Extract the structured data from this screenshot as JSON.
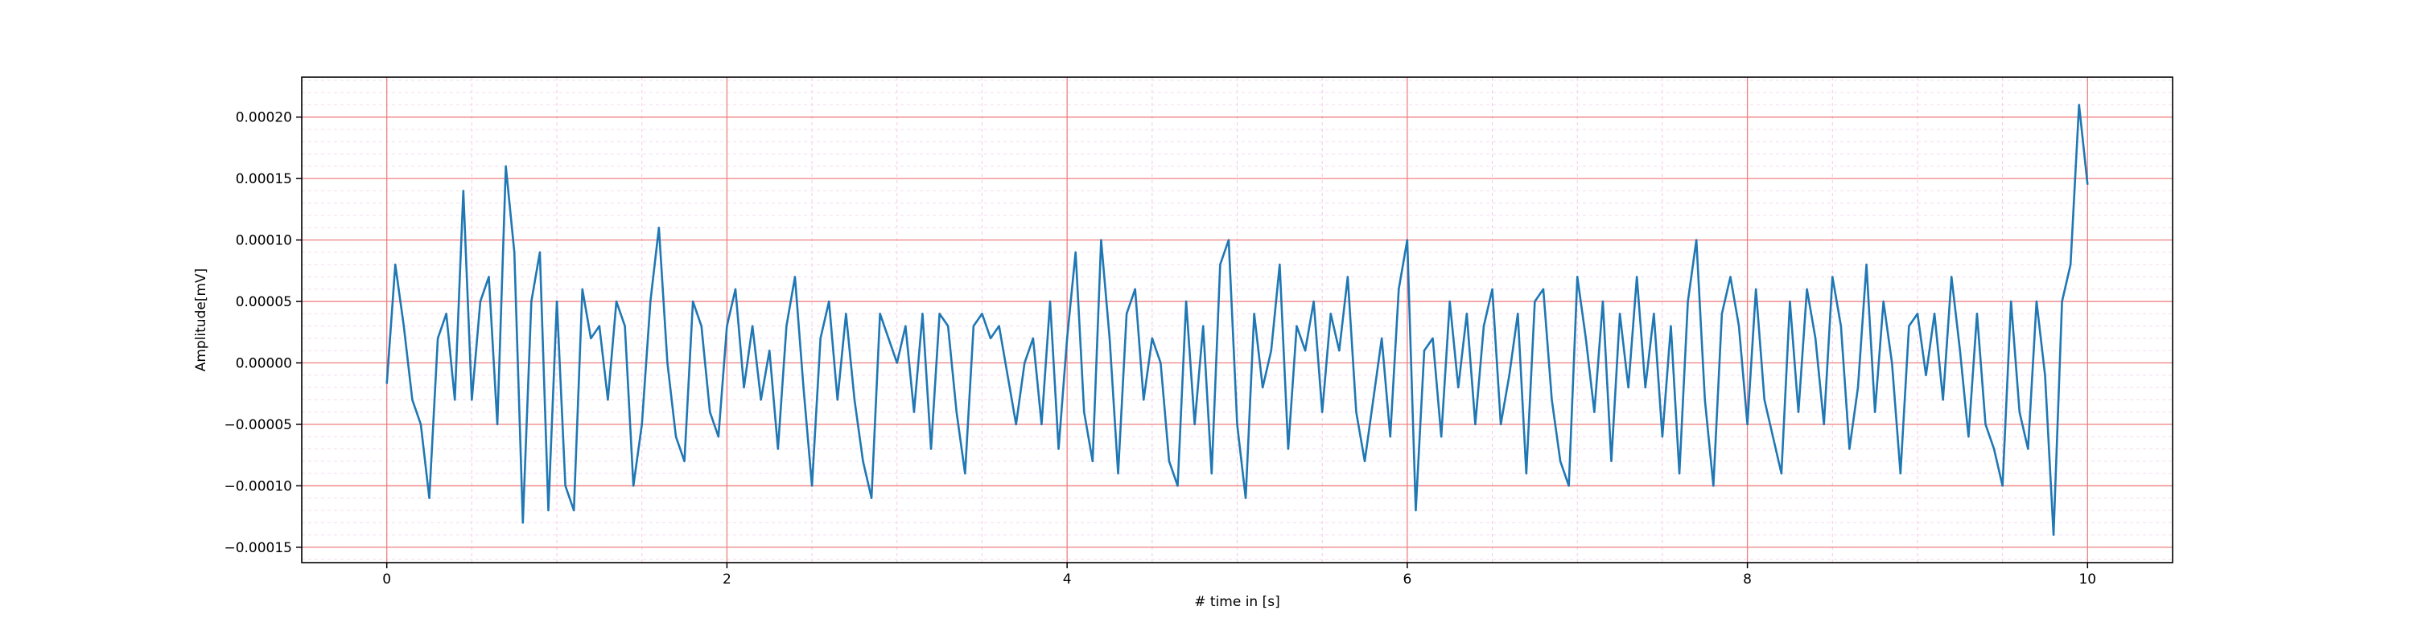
{
  "chart_data": {
    "type": "line",
    "xlabel": "# time in [s]",
    "ylabel": "Amplitude[mV]",
    "x": [
      0,
      0.05,
      0.1,
      0.15,
      0.2,
      0.25,
      0.3,
      0.35,
      0.4,
      0.45,
      0.5,
      0.55,
      0.6,
      0.65,
      0.7,
      0.75,
      0.8,
      0.85,
      0.9,
      0.95,
      1.0,
      1.05,
      1.1,
      1.15,
      1.2,
      1.25,
      1.3,
      1.35,
      1.4,
      1.45,
      1.5,
      1.55,
      1.6,
      1.65,
      1.7,
      1.75,
      1.8,
      1.85,
      1.9,
      1.95,
      2.0,
      2.05,
      2.1,
      2.15,
      2.2,
      2.25,
      2.3,
      2.35,
      2.4,
      2.45,
      2.5,
      2.55,
      2.6,
      2.65,
      2.7,
      2.75,
      2.8,
      2.85,
      2.9,
      2.95,
      3.0,
      3.05,
      3.1,
      3.15,
      3.2,
      3.25,
      3.3,
      3.35,
      3.4,
      3.45,
      3.5,
      3.55,
      3.6,
      3.65,
      3.7,
      3.75,
      3.8,
      3.85,
      3.9,
      3.95,
      4.0,
      4.05,
      4.1,
      4.15,
      4.2,
      4.25,
      4.3,
      4.35,
      4.4,
      4.45,
      4.5,
      4.55,
      4.6,
      4.65,
      4.7,
      4.75,
      4.8,
      4.85,
      4.9,
      4.95,
      5.0,
      5.05,
      5.1,
      5.15,
      5.2,
      5.25,
      5.3,
      5.35,
      5.4,
      5.45,
      5.5,
      5.55,
      5.6,
      5.65,
      5.7,
      5.75,
      5.8,
      5.85,
      5.9,
      5.95,
      6.0,
      6.05,
      6.1,
      6.15,
      6.2,
      6.25,
      6.3,
      6.35,
      6.4,
      6.45,
      6.5,
      6.55,
      6.6,
      6.65,
      6.7,
      6.75,
      6.8,
      6.85,
      6.9,
      6.95,
      7.0,
      7.05,
      7.1,
      7.15,
      7.2,
      7.25,
      7.3,
      7.35,
      7.4,
      7.45,
      7.5,
      7.55,
      7.6,
      7.65,
      7.7,
      7.75,
      7.8,
      7.85,
      7.9,
      7.95,
      8.0,
      8.05,
      8.1,
      8.15,
      8.2,
      8.25,
      8.3,
      8.35,
      8.4,
      8.45,
      8.5,
      8.55,
      8.6,
      8.65,
      8.7,
      8.75,
      8.8,
      8.85,
      8.9,
      8.95,
      9.0,
      9.05,
      9.1,
      9.15,
      9.2,
      9.25,
      9.3,
      9.35,
      9.4,
      9.45,
      9.5,
      9.55,
      9.6,
      9.65,
      9.7,
      9.75,
      9.8,
      9.85,
      9.9,
      9.95,
      10.0
    ],
    "series": [
      {
        "color": "#1f77b4",
        "values": [
          -1.7e-05,
          8e-05,
          3e-05,
          -3e-05,
          -5e-05,
          -0.00011,
          2e-05,
          4e-05,
          -3e-05,
          0.00014,
          -3e-05,
          5e-05,
          7e-05,
          -5e-05,
          0.00016,
          9e-05,
          -0.00013,
          5e-05,
          9e-05,
          -0.00012,
          5e-05,
          -0.0001,
          -0.00012,
          6e-05,
          2e-05,
          3e-05,
          -3e-05,
          5e-05,
          3e-05,
          -0.0001,
          -5e-05,
          5e-05,
          0.00011,
          0,
          -6e-05,
          -8e-05,
          5e-05,
          3e-05,
          -4e-05,
          -6e-05,
          3e-05,
          6e-05,
          -2e-05,
          3e-05,
          -3e-05,
          1e-05,
          -7e-05,
          3e-05,
          7e-05,
          -2e-05,
          -0.0001,
          2e-05,
          5e-05,
          -3e-05,
          4e-05,
          -3e-05,
          -8e-05,
          -0.00011,
          4e-05,
          2e-05,
          0,
          3e-05,
          -4e-05,
          4e-05,
          -7e-05,
          4e-05,
          3e-05,
          -4e-05,
          -9e-05,
          3e-05,
          4e-05,
          2e-05,
          3e-05,
          -1e-05,
          -5e-05,
          0,
          2e-05,
          -5e-05,
          5e-05,
          -7e-05,
          2e-05,
          9e-05,
          -4e-05,
          -8e-05,
          0.0001,
          2e-05,
          -9e-05,
          4e-05,
          6e-05,
          -3e-05,
          2e-05,
          0,
          -8e-05,
          -0.0001,
          5e-05,
          -5e-05,
          3e-05,
          -9e-05,
          8e-05,
          0.0001,
          -5e-05,
          -0.00011,
          4e-05,
          -2e-05,
          1e-05,
          8e-05,
          -7e-05,
          3e-05,
          1e-05,
          5e-05,
          -4e-05,
          4e-05,
          1e-05,
          7e-05,
          -4e-05,
          -8e-05,
          -3e-05,
          2e-05,
          -6e-05,
          6e-05,
          0.0001,
          -0.00012,
          1e-05,
          2e-05,
          -6e-05,
          5e-05,
          -2e-05,
          4e-05,
          -5e-05,
          3e-05,
          6e-05,
          -5e-05,
          -1e-05,
          4e-05,
          -9e-05,
          5e-05,
          6e-05,
          -3e-05,
          -8e-05,
          -0.0001,
          7e-05,
          2e-05,
          -4e-05,
          5e-05,
          -8e-05,
          4e-05,
          -2e-05,
          7e-05,
          -2e-05,
          4e-05,
          -6e-05,
          3e-05,
          -9e-05,
          5e-05,
          0.0001,
          -3e-05,
          -0.0001,
          4e-05,
          7e-05,
          3e-05,
          -5e-05,
          6e-05,
          -3e-05,
          -6e-05,
          -9e-05,
          5e-05,
          -4e-05,
          6e-05,
          2e-05,
          -5e-05,
          7e-05,
          3e-05,
          -7e-05,
          -2e-05,
          8e-05,
          -4e-05,
          5e-05,
          0,
          -9e-05,
          3e-05,
          4e-05,
          -1e-05,
          4e-05,
          -3e-05,
          7e-05,
          1e-05,
          -6e-05,
          4e-05,
          -5e-05,
          -7e-05,
          -0.0001,
          5e-05,
          -4e-05,
          -7e-05,
          5e-05,
          -1e-05,
          -0.00014,
          5e-05,
          8e-05,
          0.00021,
          0.000145
        ]
      }
    ],
    "xlim": [
      -0.5,
      10.5
    ],
    "ylim": [
      -0.0001625,
      0.0002325
    ],
    "xticks": [
      0,
      2,
      4,
      6,
      8,
      10
    ],
    "yticks": [
      {
        "value": -0.00015,
        "label": "−0.00015"
      },
      {
        "value": -0.0001,
        "label": "−0.00010"
      },
      {
        "value": -5e-05,
        "label": "−0.00005"
      },
      {
        "value": 0,
        "label": "0.00000"
      },
      {
        "value": 5e-05,
        "label": "0.00005"
      },
      {
        "value": 0.0001,
        "label": "0.00010"
      },
      {
        "value": 0.00015,
        "label": "0.00015"
      },
      {
        "value": 0.0002,
        "label": "0.00020"
      }
    ],
    "grid": true,
    "grid_color": "#f08080",
    "minor_grid": true
  }
}
